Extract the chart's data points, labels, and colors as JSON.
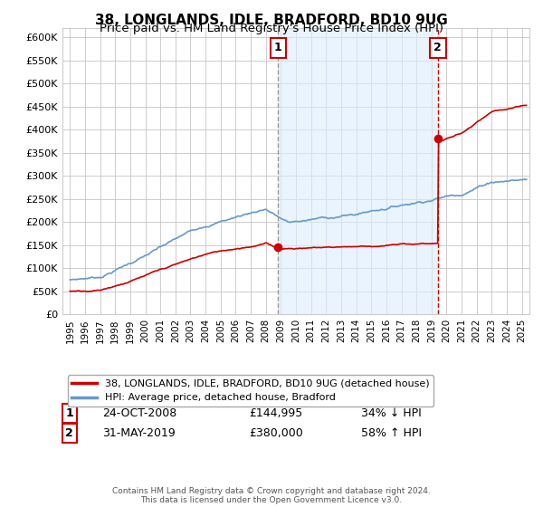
{
  "title1": "38, LONGLANDS, IDLE, BRADFORD, BD10 9UG",
  "title2": "Price paid vs. HM Land Registry's House Price Index (HPI)",
  "ylim": [
    0,
    620000
  ],
  "yticks": [
    0,
    50000,
    100000,
    150000,
    200000,
    250000,
    300000,
    350000,
    400000,
    450000,
    500000,
    550000,
    600000
  ],
  "xlim_start": 1994.5,
  "xlim_end": 2025.5,
  "sale1_year": 2008.82,
  "sale1_price": 144995,
  "sale1_label": "1",
  "sale1_date": "24-OCT-2008",
  "sale1_pct": "34% ↓ HPI",
  "sale2_year": 2019.42,
  "sale2_price": 380000,
  "sale2_label": "2",
  "sale2_date": "31-MAY-2019",
  "sale2_pct": "58% ↑ HPI",
  "red_color": "#cc0000",
  "blue_color": "#6699cc",
  "shade_color": "#ddeeff",
  "grid_color": "#cccccc",
  "background_color": "#ffffff",
  "legend_label_red": "38, LONGLANDS, IDLE, BRADFORD, BD10 9UG (detached house)",
  "legend_label_blue": "HPI: Average price, detached house, Bradford",
  "footnote": "Contains HM Land Registry data © Crown copyright and database right 2024.\nThis data is licensed under the Open Government Licence v3.0.",
  "title1_fontsize": 11,
  "title2_fontsize": 9.5
}
